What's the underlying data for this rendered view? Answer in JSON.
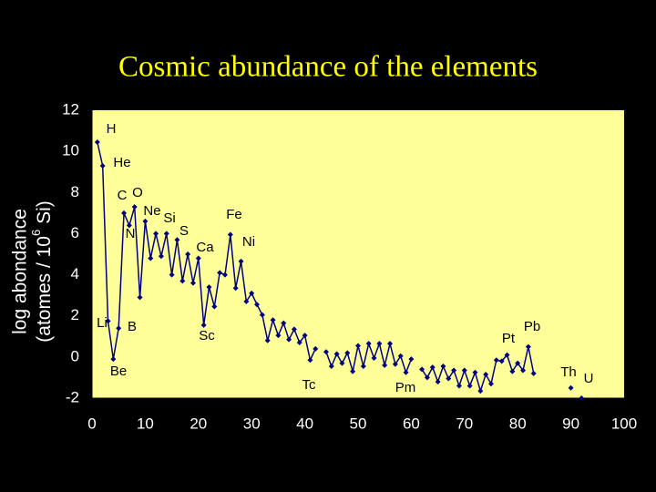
{
  "chart_data": {
    "type": "line",
    "title": "Cosmic abundance of the elements",
    "y_label": [
      "log abondance",
      "(atomes / 10",
      "6",
      " Si)"
    ],
    "x": [
      1,
      2,
      3,
      4,
      5,
      6,
      7,
      8,
      9,
      10,
      11,
      12,
      13,
      14,
      15,
      16,
      17,
      18,
      19,
      20,
      21,
      22,
      23,
      24,
      25,
      26,
      27,
      28,
      29,
      30,
      31,
      32,
      33,
      34,
      35,
      36,
      37,
      38,
      39,
      40,
      41,
      42,
      43,
      44,
      45,
      46,
      47,
      48,
      49,
      50,
      51,
      52,
      53,
      54,
      55,
      56,
      57,
      58,
      59,
      60,
      61,
      62,
      63,
      64,
      65,
      66,
      67,
      68,
      69,
      70,
      71,
      72,
      73,
      74,
      75,
      76,
      77,
      78,
      79,
      80,
      81,
      82,
      83,
      84,
      85,
      86,
      87,
      88,
      89,
      90,
      91,
      92
    ],
    "series": [
      {
        "color": "#000080",
        "values": [
          10.45,
          9.3,
          1.75,
          -0.1,
          1.4,
          7.0,
          6.4,
          7.3,
          2.9,
          6.6,
          4.8,
          6.0,
          4.9,
          6.0,
          4.0,
          5.7,
          3.7,
          5.0,
          3.6,
          4.8,
          1.55,
          3.4,
          2.45,
          4.1,
          4.0,
          5.95,
          3.35,
          4.65,
          2.7,
          3.1,
          2.55,
          2.05,
          0.8,
          1.8,
          1.05,
          1.65,
          0.85,
          1.35,
          0.7,
          1.05,
          -0.15,
          0.4,
          null,
          0.25,
          -0.45,
          0.15,
          -0.3,
          0.2,
          -0.7,
          0.55,
          -0.45,
          0.65,
          -0.05,
          0.65,
          -0.4,
          0.65,
          -0.35,
          0.05,
          -0.75,
          -0.1,
          null,
          -0.6,
          -1.0,
          -0.5,
          -1.2,
          -0.45,
          -1.05,
          -0.65,
          -1.4,
          -0.65,
          -1.4,
          -0.75,
          -1.65,
          -0.85,
          -1.3,
          -0.15,
          -0.2,
          0.1,
          -0.7,
          -0.3,
          -0.65,
          0.5,
          -0.8,
          null,
          null,
          null,
          null,
          null,
          null,
          -1.5,
          null,
          -2.0
        ]
      }
    ],
    "point_labels": [
      "H",
      "He",
      "Li",
      "Be",
      "B",
      "C",
      "N",
      "O",
      null,
      "Ne",
      null,
      null,
      null,
      "Si",
      null,
      "S",
      null,
      null,
      null,
      "Ca",
      "Sc",
      null,
      null,
      null,
      null,
      "Fe",
      null,
      "Ni",
      null,
      null,
      null,
      null,
      null,
      null,
      null,
      null,
      null,
      null,
      null,
      null,
      null,
      null,
      "Tc",
      null,
      null,
      null,
      null,
      null,
      null,
      null,
      null,
      null,
      null,
      null,
      null,
      null,
      null,
      null,
      null,
      null,
      "Pm",
      null,
      null,
      null,
      null,
      null,
      null,
      null,
      null,
      null,
      null,
      null,
      null,
      null,
      null,
      null,
      null,
      "Pt",
      null,
      null,
      null,
      "Pb",
      null,
      null,
      null,
      null,
      null,
      null,
      null,
      "Th",
      null,
      "U"
    ],
    "xlim": [
      0,
      100
    ],
    "xticks": [
      0,
      10,
      20,
      30,
      40,
      50,
      60,
      70,
      80,
      90,
      100
    ],
    "ylim": [
      -2,
      12
    ],
    "yticks": [
      -2,
      0,
      2,
      4,
      6,
      8,
      10,
      12
    ],
    "plot_background": "#ffff99"
  }
}
